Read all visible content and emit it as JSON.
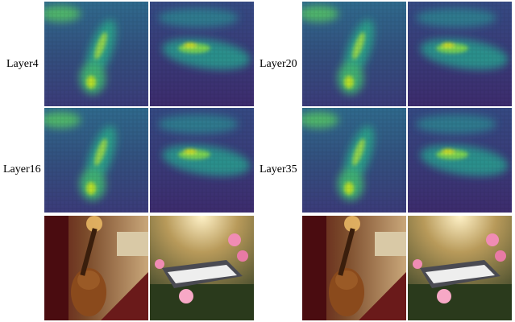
{
  "labels": [
    "Layer4",
    "Layer16",
    "Layer20",
    "Layer35"
  ]
}
